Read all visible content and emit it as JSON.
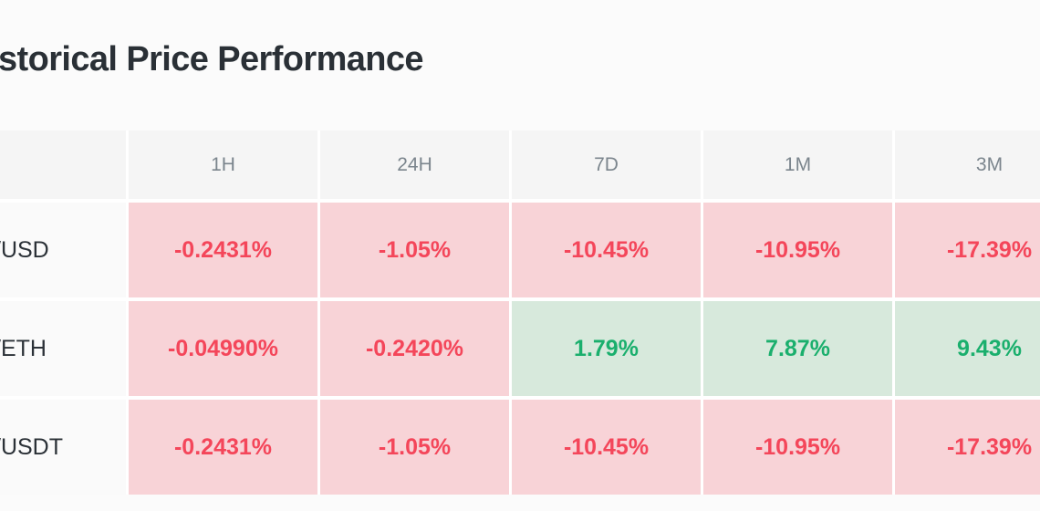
{
  "title": "storical Price Performance",
  "table": {
    "headers": [
      "",
      "1H",
      "24H",
      "7D",
      "1M",
      "3M"
    ],
    "rows": [
      {
        "label": "/USD",
        "cells": [
          {
            "text": "-0.2431%",
            "dir": "down"
          },
          {
            "text": "-1.05%",
            "dir": "down"
          },
          {
            "text": "-10.45%",
            "dir": "down"
          },
          {
            "text": "-10.95%",
            "dir": "down"
          },
          {
            "text": "-17.39%",
            "dir": "down"
          }
        ]
      },
      {
        "label": "/ETH",
        "cells": [
          {
            "text": "-0.04990%",
            "dir": "down"
          },
          {
            "text": "-0.2420%",
            "dir": "down"
          },
          {
            "text": "1.79%",
            "dir": "up"
          },
          {
            "text": "7.87%",
            "dir": "up"
          },
          {
            "text": "9.43%",
            "dir": "up"
          }
        ]
      },
      {
        "label": "/USDT",
        "cells": [
          {
            "text": "-0.2431%",
            "dir": "down"
          },
          {
            "text": "-1.05%",
            "dir": "down"
          },
          {
            "text": "-10.45%",
            "dir": "down"
          },
          {
            "text": "-10.95%",
            "dir": "down"
          },
          {
            "text": "-17.39%",
            "dir": "down"
          }
        ]
      }
    ]
  },
  "colors": {
    "down_text": "#f4465a",
    "down_bg": "#f8d3d7",
    "up_text": "#1aaf6d",
    "up_bg": "#d7e9dc",
    "header_bg": "#f5f5f5",
    "header_text": "#7b858d",
    "label_text": "#2b3137",
    "title_text": "#2a3036"
  }
}
